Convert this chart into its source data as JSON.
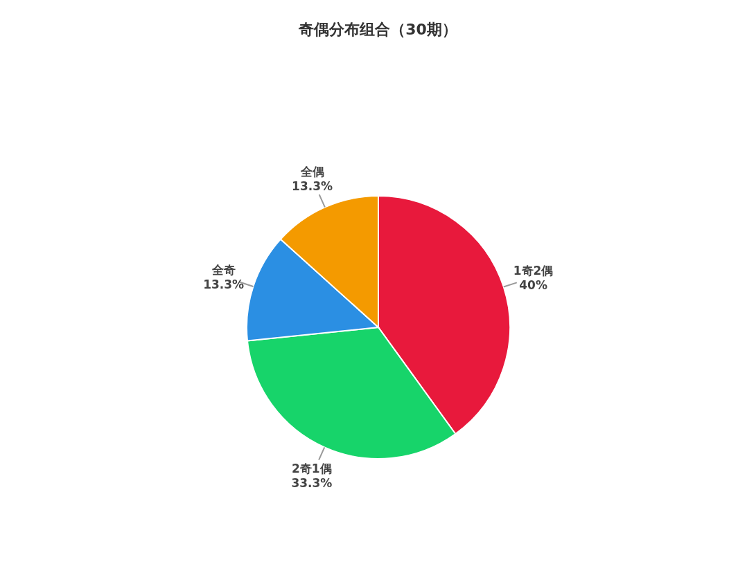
{
  "chart_data": {
    "type": "pie",
    "title": "奇偶分布组合（30期）",
    "categories": [
      "1奇2偶",
      "2奇1偶",
      "全奇",
      "全偶"
    ],
    "values": [
      40,
      33.3,
      13.3,
      13.3
    ],
    "value_labels": [
      "40%",
      "33.3%",
      "13.3%",
      "13.3%"
    ],
    "colors": [
      "#e8193c",
      "#17d46a",
      "#2b8fe3",
      "#f49a00"
    ],
    "legend": false
  }
}
